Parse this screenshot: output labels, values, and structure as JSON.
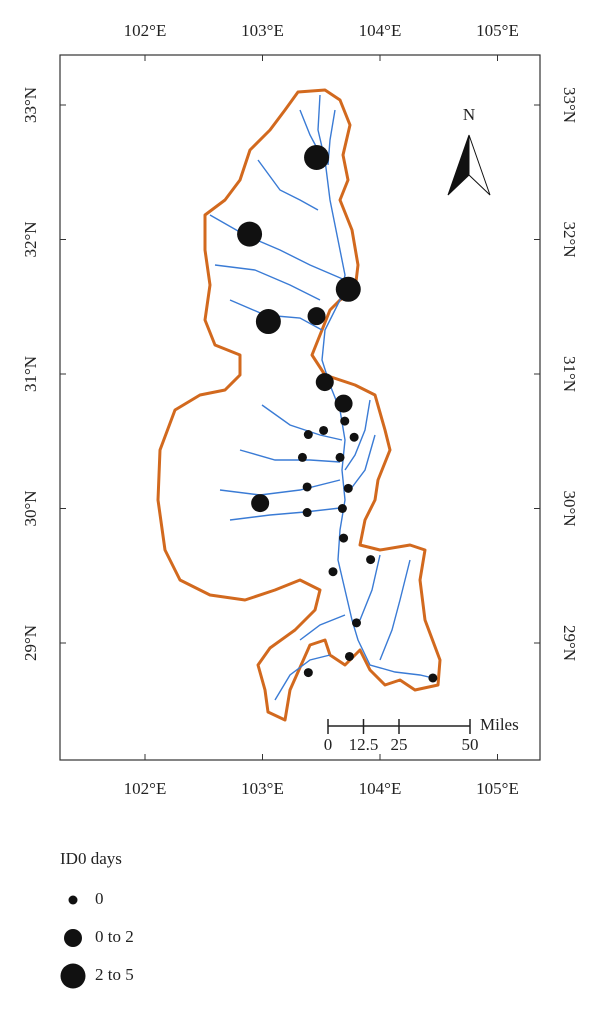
{
  "map": {
    "north_label": "N",
    "xticks": [
      {
        "value": 102,
        "label": "102°E"
      },
      {
        "value": 103,
        "label": "103°E"
      },
      {
        "value": 104,
        "label": "104°E"
      },
      {
        "value": 105,
        "label": "105°E"
      }
    ],
    "yticks": [
      {
        "value": 33,
        "label": "33°N"
      },
      {
        "value": 32,
        "label": "32°N"
      },
      {
        "value": 31,
        "label": "31°N"
      },
      {
        "value": 30,
        "label": "30°N"
      },
      {
        "value": 29,
        "label": "29°N"
      }
    ],
    "scale_bar": {
      "unit": "Miles",
      "ticks": [
        0,
        12.5,
        25,
        50
      ]
    },
    "legend": {
      "title": "ID0 days",
      "items": [
        "0",
        "0 to 2",
        "2 to 5"
      ]
    },
    "stations": [
      {
        "lon": 103.46,
        "lat": 32.61,
        "days": "2 to 5"
      },
      {
        "lon": 102.89,
        "lat": 32.04,
        "days": "2 to 5"
      },
      {
        "lon": 103.73,
        "lat": 31.63,
        "days": "2 to 5"
      },
      {
        "lon": 103.05,
        "lat": 31.39,
        "days": "2 to 5"
      },
      {
        "lon": 103.46,
        "lat": 31.43,
        "days": "0 to 2"
      },
      {
        "lon": 103.53,
        "lat": 30.94,
        "days": "0 to 2"
      },
      {
        "lon": 103.69,
        "lat": 30.78,
        "days": "0 to 2"
      },
      {
        "lon": 102.98,
        "lat": 30.04,
        "days": "0 to 2"
      },
      {
        "lon": 103.7,
        "lat": 30.65,
        "days": "0"
      },
      {
        "lon": 103.52,
        "lat": 30.58,
        "days": "0"
      },
      {
        "lon": 103.39,
        "lat": 30.55,
        "days": "0"
      },
      {
        "lon": 103.78,
        "lat": 30.53,
        "days": "0"
      },
      {
        "lon": 103.34,
        "lat": 30.38,
        "days": "0"
      },
      {
        "lon": 103.66,
        "lat": 30.38,
        "days": "0"
      },
      {
        "lon": 103.38,
        "lat": 30.16,
        "days": "0"
      },
      {
        "lon": 103.73,
        "lat": 30.15,
        "days": "0"
      },
      {
        "lon": 103.68,
        "lat": 30.0,
        "days": "0"
      },
      {
        "lon": 103.38,
        "lat": 29.97,
        "days": "0"
      },
      {
        "lon": 103.69,
        "lat": 29.78,
        "days": "0"
      },
      {
        "lon": 103.92,
        "lat": 29.62,
        "days": "0"
      },
      {
        "lon": 103.6,
        "lat": 29.53,
        "days": "0"
      },
      {
        "lon": 103.8,
        "lat": 29.15,
        "days": "0"
      },
      {
        "lon": 103.74,
        "lat": 28.9,
        "days": "0"
      },
      {
        "lon": 103.39,
        "lat": 28.78,
        "days": "0"
      },
      {
        "lon": 104.45,
        "lat": 28.74,
        "days": "0"
      }
    ]
  }
}
